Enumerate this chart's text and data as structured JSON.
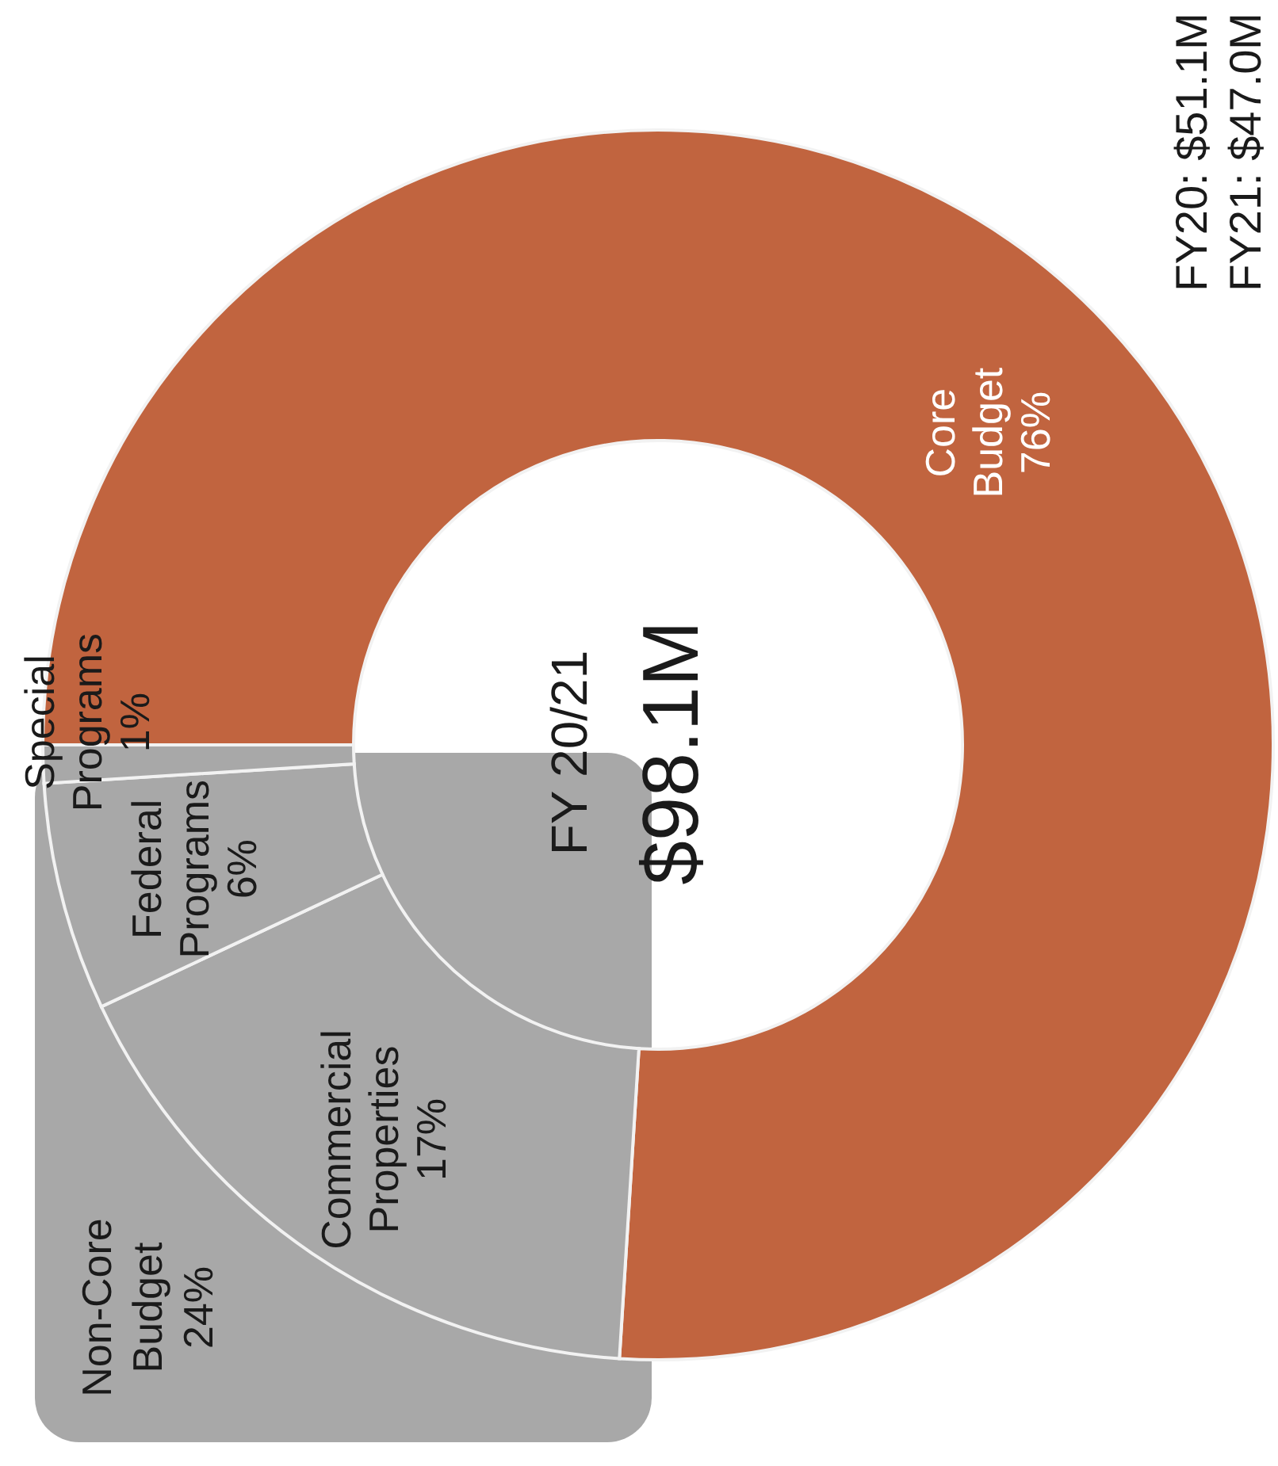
{
  "chart_data": {
    "type": "donut",
    "title": "FY 20/21",
    "subtitle": "$98.1M",
    "categories": [
      "Core Budget",
      "Commercial Properties",
      "Federal Programs",
      "Special Programs"
    ],
    "values": [
      76,
      17,
      6,
      1
    ],
    "colors": [
      "#c1643f",
      "#a8a8a8",
      "#a8a8a8",
      "#a8a8a8"
    ],
    "value_labels": [
      "76%",
      "17%",
      "6%",
      "1%"
    ],
    "annotations": [
      "Non-Core Budget 24%",
      "FY20: $51.1M",
      "FY21: $47.0M"
    ]
  }
}
